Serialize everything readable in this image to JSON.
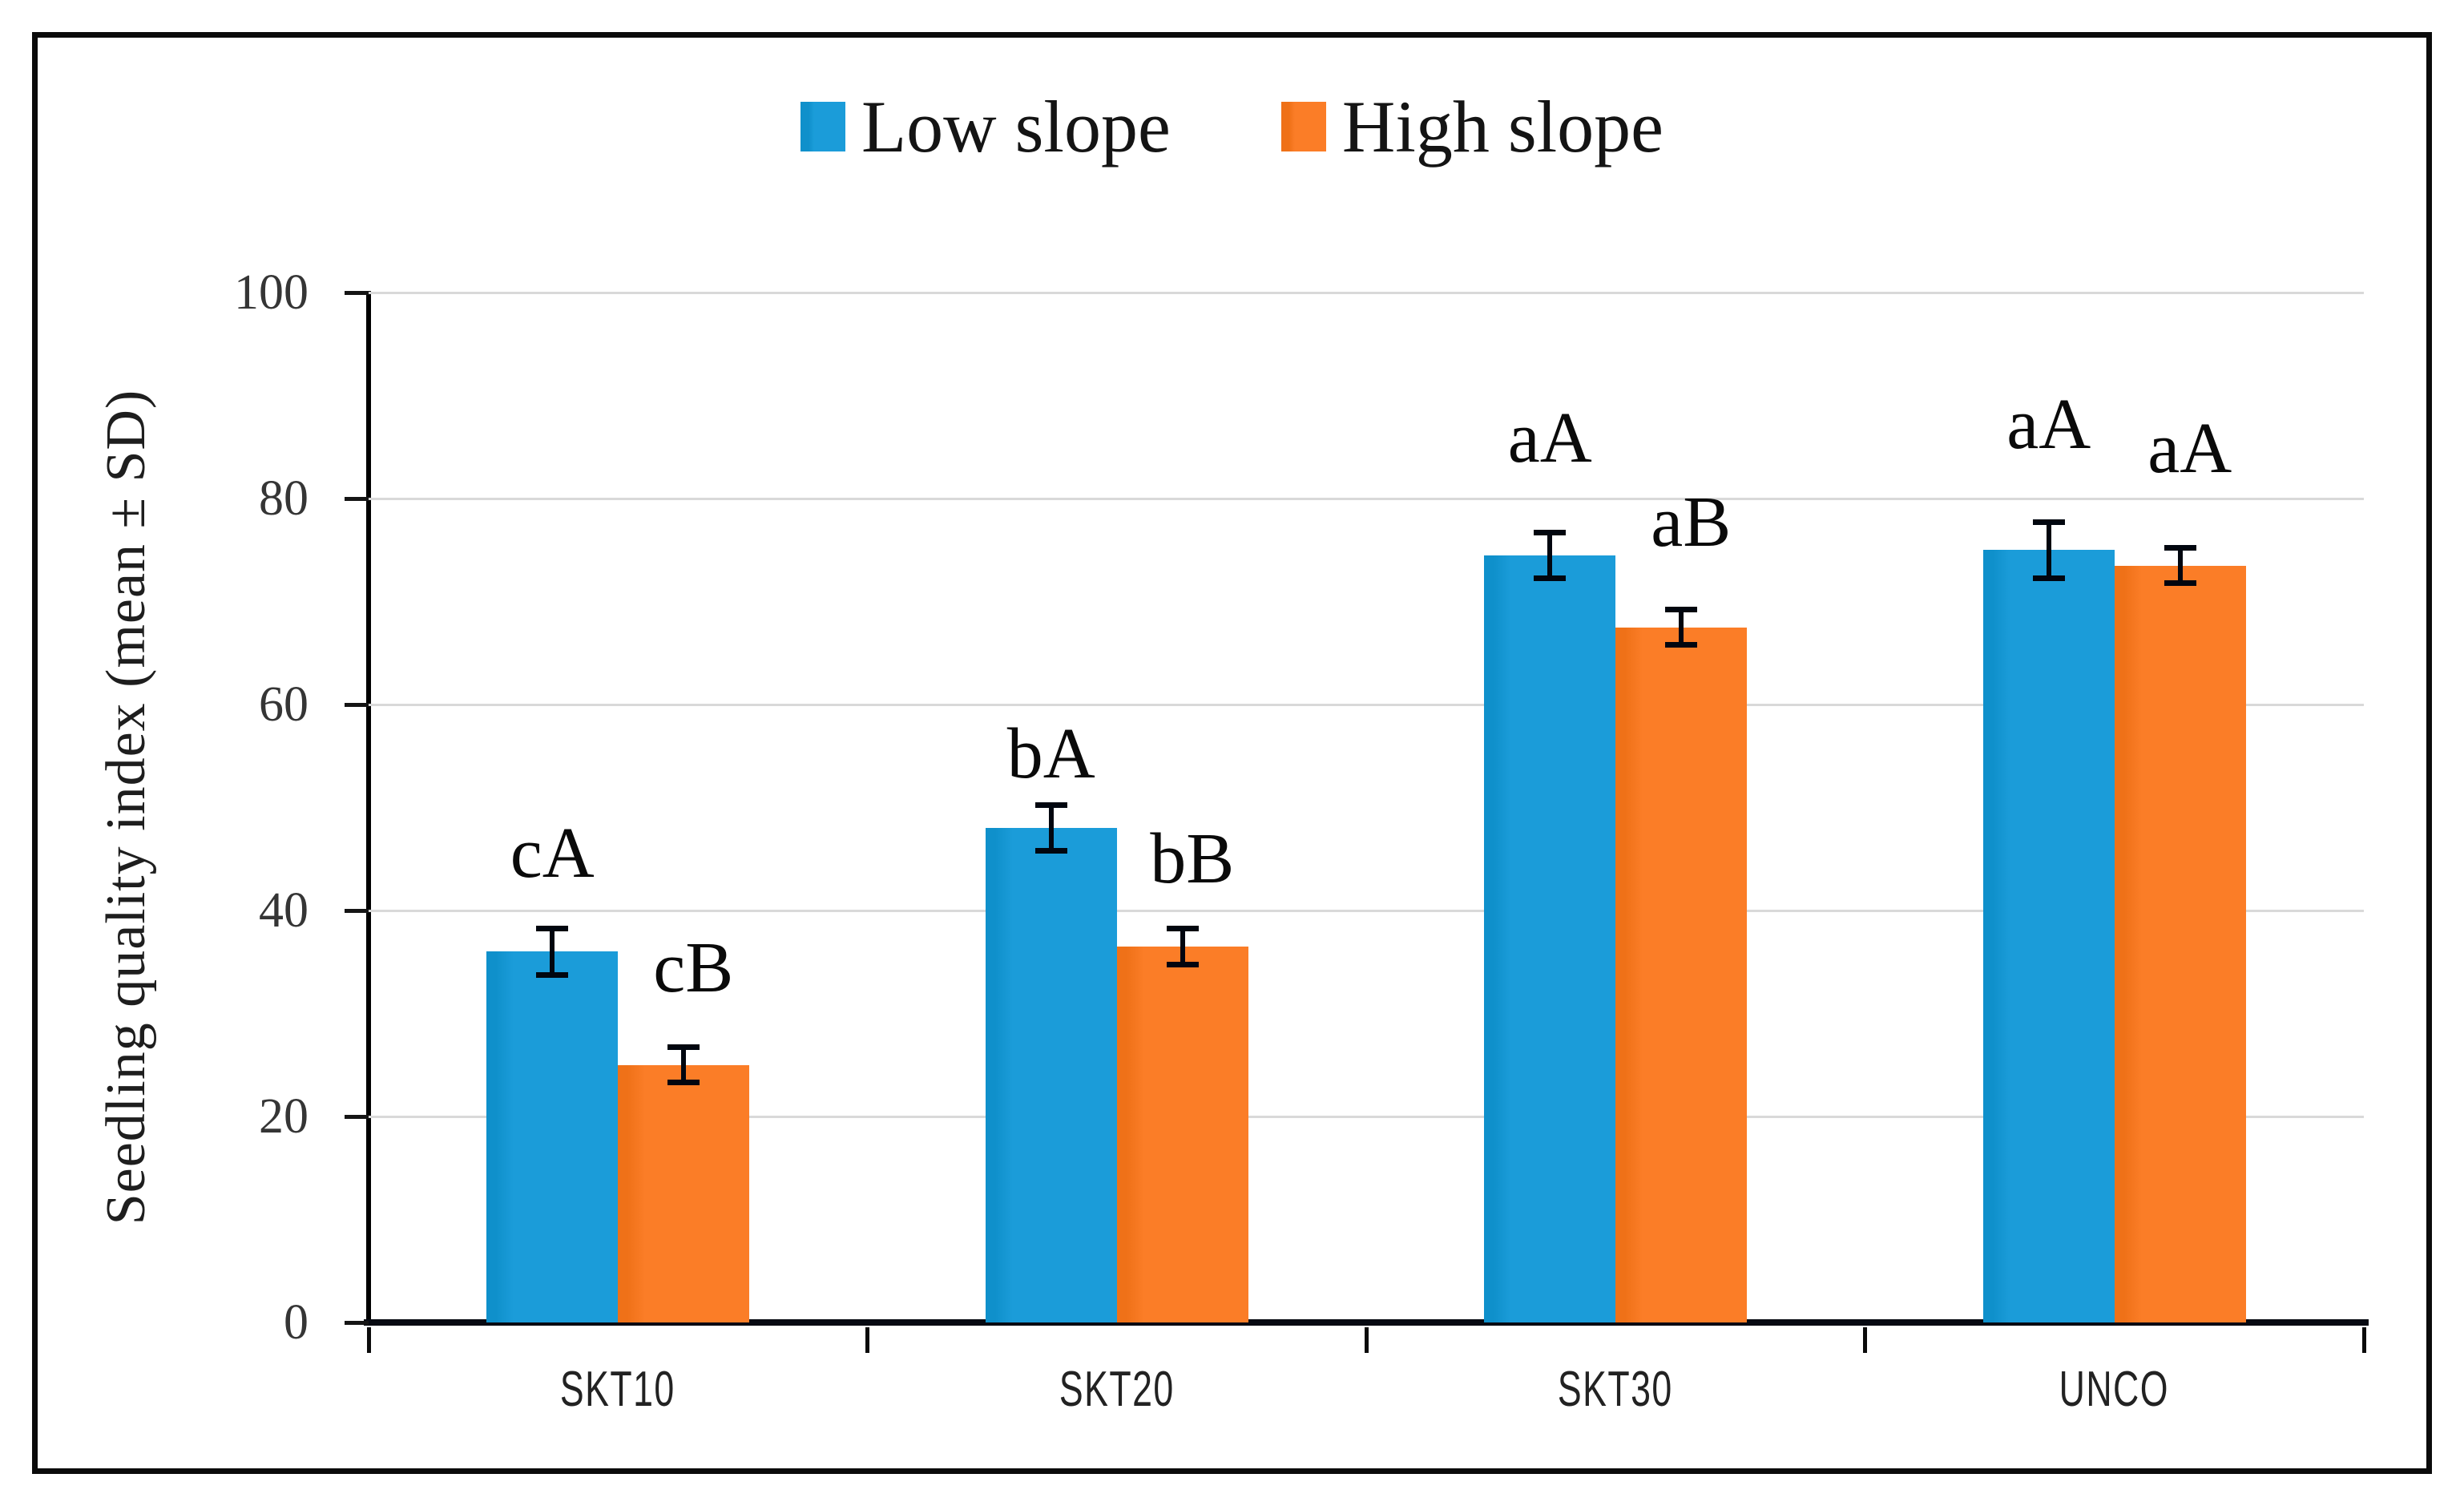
{
  "figure": {
    "background": "#ffffff",
    "border_color": "#0b0b0b"
  },
  "legend": {
    "position": "top-center",
    "items": [
      {
        "label": "Low slope",
        "color": "#1b9cd9",
        "color_dark_edge": "#0f90cb"
      },
      {
        "label": "High slope",
        "color": "#fb7d27",
        "color_dark_edge": "#ef7118"
      }
    ]
  },
  "axes": {
    "y_title": "Seedling quality index (mean ± SD)",
    "y_ticks": [
      0,
      20,
      40,
      60,
      80,
      100
    ],
    "y_min": 0,
    "y_max": 100,
    "grid_color": "#d9d9d9",
    "axis_color": "#000000"
  },
  "chart_data": {
    "type": "bar",
    "title": "",
    "xlabel": "",
    "ylabel": "Seedling quality index (mean ± SD)",
    "ylim": [
      0,
      100
    ],
    "grid": true,
    "legend_position": "top",
    "categories": [
      "SKT10",
      "SKT20",
      "SKT30",
      "UNCO"
    ],
    "series": [
      {
        "name": "Low slope",
        "color": "#1b9cd9",
        "values": [
          36,
          48,
          74.5,
          75
        ],
        "sd": [
          2.5,
          2.5,
          2.5,
          3
        ],
        "letters": [
          "cA",
          "bA",
          "aA",
          "aA"
        ],
        "letter_offsets_px": [
          45,
          15,
          69,
          73
        ]
      },
      {
        "name": "High slope",
        "color": "#fb7d27",
        "values": [
          25,
          36.5,
          67.5,
          73.5
        ],
        "sd": [
          2,
          2,
          2,
          2
        ],
        "letters": [
          "cB",
          "bB",
          "aB",
          "aA"
        ],
        "letter_offsets_px": [
          50,
          38,
          60,
          75
        ]
      }
    ]
  }
}
